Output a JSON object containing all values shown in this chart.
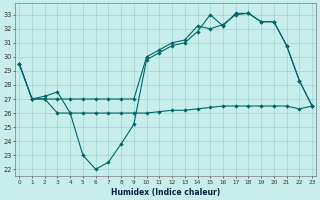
{
  "xlabel": "Humidex (Indice chaleur)",
  "bg_color": "#c8eeec",
  "grid_color": "#a0d4d0",
  "line_color": "#006666",
  "ylim": [
    21.5,
    33.8
  ],
  "xlim": [
    -0.3,
    23.3
  ],
  "yticks": [
    22,
    23,
    24,
    25,
    26,
    27,
    28,
    29,
    30,
    31,
    32,
    33
  ],
  "xticks": [
    0,
    1,
    2,
    3,
    4,
    5,
    6,
    7,
    8,
    9,
    10,
    11,
    12,
    13,
    14,
    15,
    16,
    17,
    18,
    19,
    20,
    21,
    22,
    23
  ],
  "line1": [
    29.5,
    27.0,
    27.0,
    27.0,
    27.0,
    27.0,
    27.0,
    27.0,
    27.0,
    27.0,
    30.0,
    30.5,
    31.0,
    31.2,
    32.2,
    32.0,
    32.3,
    33.0,
    33.1,
    32.5,
    32.5,
    30.8,
    28.3,
    26.5
  ],
  "line2": [
    29.5,
    27.0,
    27.2,
    27.5,
    26.0,
    23.0,
    22.0,
    22.5,
    23.8,
    25.2,
    29.8,
    30.3,
    30.8,
    31.0,
    31.8,
    33.0,
    32.2,
    33.1,
    33.1,
    32.5,
    32.5,
    30.8,
    28.3,
    26.5
  ],
  "line3": [
    29.5,
    27.0,
    27.0,
    26.0,
    26.0,
    26.0,
    26.0,
    26.0,
    26.0,
    26.0,
    26.0,
    26.1,
    26.2,
    26.2,
    26.3,
    26.4,
    26.5,
    26.5,
    26.5,
    26.5,
    26.5,
    26.5,
    26.3,
    26.5
  ]
}
